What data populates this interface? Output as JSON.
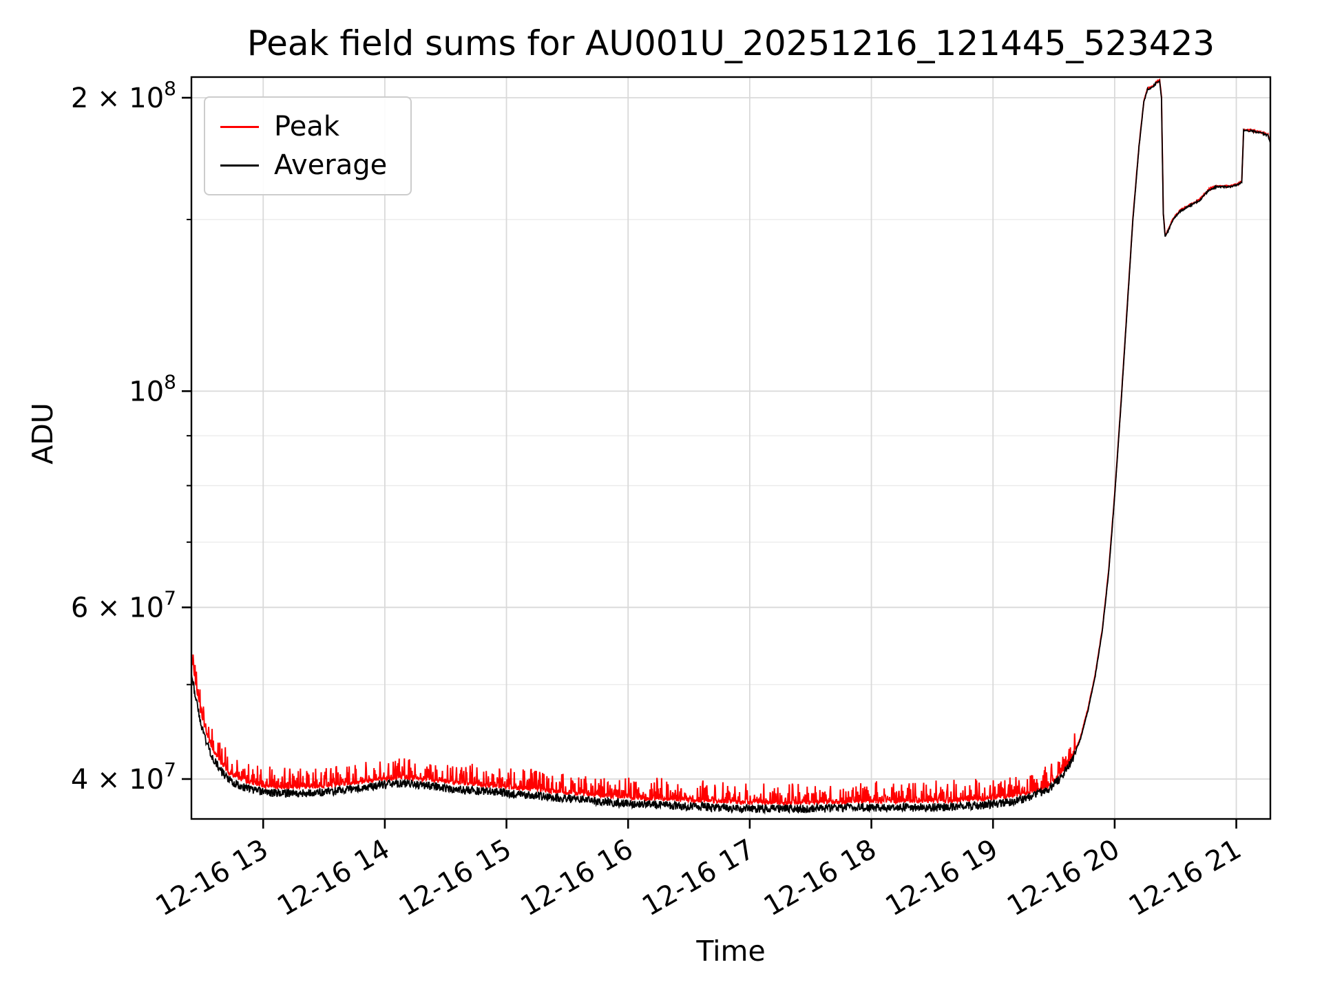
{
  "chart_data": {
    "type": "line",
    "title": "Peak field sums for AU001U_20251216_121445_523423",
    "xlabel": "Time",
    "ylabel": "ADU",
    "grid": true,
    "legend_position": "upper left",
    "x_axis": {
      "unit": "time of day on 12-16 (hours)",
      "min": 12.41,
      "max": 21.28,
      "ticks": [
        {
          "value": 13,
          "label": "12-16 13"
        },
        {
          "value": 14,
          "label": "12-16 14"
        },
        {
          "value": 15,
          "label": "12-16 15"
        },
        {
          "value": 16,
          "label": "12-16 16"
        },
        {
          "value": 17,
          "label": "12-16 17"
        },
        {
          "value": 18,
          "label": "12-16 18"
        },
        {
          "value": 19,
          "label": "12-16 19"
        },
        {
          "value": 20,
          "label": "12-16 20"
        },
        {
          "value": 21,
          "label": "12-16 21"
        }
      ]
    },
    "y_axis": {
      "scale": "log",
      "min": 36400000.0,
      "max": 210000000.0,
      "ticks": [
        {
          "value": 40000000.0,
          "mantissa": "4 × 10",
          "exp": "7"
        },
        {
          "value": 60000000.0,
          "mantissa": "6 × 10",
          "exp": "7"
        },
        {
          "value": 100000000.0,
          "mantissa": "10",
          "exp": "8"
        },
        {
          "value": 200000000.0,
          "mantissa": "2 × 10",
          "exp": "8"
        }
      ],
      "minor_gridlines": [
        50000000.0,
        70000000.0,
        80000000.0,
        90000000.0,
        150000000.0
      ]
    },
    "series": [
      {
        "name": "Peak",
        "color": "#ff0000",
        "points": [
          [
            12.41,
            53500000.0
          ],
          [
            12.44,
            50500000.0
          ],
          [
            12.48,
            47200000.0
          ],
          [
            12.53,
            44700000.0
          ],
          [
            12.58,
            43000000.0
          ],
          [
            12.65,
            41500000.0
          ],
          [
            12.72,
            40500000.0
          ],
          [
            12.82,
            39900000.0
          ],
          [
            12.95,
            39400000.0
          ],
          [
            13.1,
            39200000.0
          ],
          [
            13.4,
            39200000.0
          ],
          [
            13.7,
            39500000.0
          ],
          [
            13.95,
            39900000.0
          ],
          [
            14.15,
            40100000.0
          ],
          [
            14.35,
            39900000.0
          ],
          [
            14.6,
            39600000.0
          ],
          [
            14.9,
            39300000.0
          ],
          [
            15.2,
            39000000.0
          ],
          [
            15.5,
            38700000.0
          ],
          [
            15.8,
            38400000.0
          ],
          [
            16.1,
            38200000.0
          ],
          [
            16.5,
            38000000.0
          ],
          [
            17.0,
            37800000.0
          ],
          [
            17.5,
            37800000.0
          ],
          [
            18.0,
            37900000.0
          ],
          [
            18.5,
            37900000.0
          ],
          [
            18.9,
            38100000.0
          ],
          [
            19.15,
            38400000.0
          ],
          [
            19.3,
            38700000.0
          ],
          [
            19.45,
            39300000.0
          ],
          [
            19.55,
            40300000.0
          ],
          [
            19.65,
            42000000.0
          ],
          [
            19.72,
            44200000.0
          ],
          [
            19.78,
            47200000.0
          ],
          [
            19.84,
            51200000.0
          ],
          [
            19.9,
            57200000.0
          ],
          [
            19.95,
            65300000.0
          ],
          [
            20.0,
            78300000.0
          ],
          [
            20.05,
            96300000.0
          ],
          [
            20.1,
            120400000.0
          ],
          [
            20.15,
            150400000.0
          ],
          [
            20.2,
            178400000.0
          ],
          [
            20.24,
            198400000.0
          ],
          [
            20.27,
            204500000.0
          ],
          [
            20.31,
            205500000.0
          ],
          [
            20.34,
            207500000.0
          ],
          [
            20.37,
            208500000.0
          ],
          [
            20.385,
            200500000.0
          ],
          [
            20.4,
            152300000.0
          ],
          [
            20.415,
            144300000.0
          ],
          [
            20.44,
            146300000.0
          ],
          [
            20.48,
            150300000.0
          ],
          [
            20.54,
            153300000.0
          ],
          [
            20.62,
            155300000.0
          ],
          [
            20.7,
            157300000.0
          ],
          [
            20.74,
            159300000.0
          ],
          [
            20.78,
            161300000.0
          ],
          [
            20.84,
            162300000.0
          ],
          [
            20.95,
            162300000.0
          ],
          [
            21.02,
            163300000.0
          ],
          [
            21.045,
            164300000.0
          ],
          [
            21.06,
            185300000.0
          ],
          [
            21.12,
            185300000.0
          ],
          [
            21.2,
            184300000.0
          ],
          [
            21.26,
            183300000.0
          ],
          [
            21.28,
            180300000.0
          ]
        ]
      },
      {
        "name": "Average",
        "color": "#000000",
        "points": [
          [
            12.41,
            51500000.0
          ],
          [
            12.44,
            49000000.0
          ],
          [
            12.48,
            46000000.0
          ],
          [
            12.53,
            43800000.0
          ],
          [
            12.58,
            42200000.0
          ],
          [
            12.65,
            40800000.0
          ],
          [
            12.72,
            39900000.0
          ],
          [
            12.82,
            39300000.0
          ],
          [
            12.95,
            38900000.0
          ],
          [
            13.1,
            38700000.0
          ],
          [
            13.4,
            38700000.0
          ],
          [
            13.7,
            39000000.0
          ],
          [
            13.95,
            39400000.0
          ],
          [
            14.15,
            39600000.0
          ],
          [
            14.35,
            39400000.0
          ],
          [
            14.6,
            39000000.0
          ],
          [
            14.9,
            38800000.0
          ],
          [
            15.2,
            38500000.0
          ],
          [
            15.5,
            38200000.0
          ],
          [
            15.8,
            37900000.0
          ],
          [
            16.1,
            37700000.0
          ],
          [
            16.5,
            37500000.0
          ],
          [
            17.0,
            37300000.0
          ],
          [
            17.5,
            37300000.0
          ],
          [
            18.0,
            37400000.0
          ],
          [
            18.5,
            37400000.0
          ],
          [
            18.9,
            37600000.0
          ],
          [
            19.15,
            37900000.0
          ],
          [
            19.3,
            38300000.0
          ],
          [
            19.45,
            39000000.0
          ],
          [
            19.55,
            40000000.0
          ],
          [
            19.65,
            41800000.0
          ],
          [
            19.72,
            44000000.0
          ],
          [
            19.78,
            47000000.0
          ],
          [
            19.84,
            51000000.0
          ],
          [
            19.9,
            57000000.0
          ],
          [
            19.95,
            65000000.0
          ],
          [
            20.0,
            78000000.0
          ],
          [
            20.05,
            96000000.0
          ],
          [
            20.1,
            120000000.0
          ],
          [
            20.15,
            150000000.0
          ],
          [
            20.2,
            178000000.0
          ],
          [
            20.24,
            198000000.0
          ],
          [
            20.27,
            204000000.0
          ],
          [
            20.31,
            205000000.0
          ],
          [
            20.34,
            207000000.0
          ],
          [
            20.37,
            208000000.0
          ],
          [
            20.385,
            200000000.0
          ],
          [
            20.4,
            152000000.0
          ],
          [
            20.415,
            144000000.0
          ],
          [
            20.44,
            146000000.0
          ],
          [
            20.48,
            150000000.0
          ],
          [
            20.54,
            153000000.0
          ],
          [
            20.62,
            155000000.0
          ],
          [
            20.7,
            157000000.0
          ],
          [
            20.74,
            159000000.0
          ],
          [
            20.78,
            161000000.0
          ],
          [
            20.84,
            162000000.0
          ],
          [
            20.95,
            162000000.0
          ],
          [
            21.02,
            163000000.0
          ],
          [
            21.045,
            164000000.0
          ],
          [
            21.06,
            185000000.0
          ],
          [
            21.12,
            185000000.0
          ],
          [
            21.2,
            184000000.0
          ],
          [
            21.26,
            183000000.0
          ],
          [
            21.28,
            180000000.0
          ]
        ]
      }
    ],
    "noise": {
      "region": [
        12.41,
        19.68
      ],
      "peak_spike": 0.05,
      "peak_base": 0.008,
      "avg_jitter": 0.02,
      "base_jitter": 0.004,
      "seed": 42
    },
    "colors": {
      "grid_major": "#d9d9d9",
      "grid_minor": "#ebebeb",
      "spine": "#000000"
    }
  }
}
